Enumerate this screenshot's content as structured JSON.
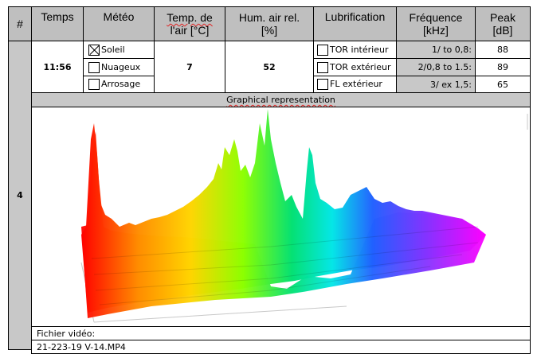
{
  "headers": {
    "num": "#",
    "temps": "Temps",
    "meteo": "Météo",
    "temp_air_l1": "Temp. de",
    "temp_air_l2": "l'air [°C]",
    "hum_l1": "Hum. air rel.",
    "hum_l2": "[%]",
    "lubrification": "Lubrification",
    "frequence_l1": "Fréquence",
    "frequence_l2": "[kHz]",
    "peak_l1": "Peak",
    "peak_l2": "[dB]"
  },
  "row": {
    "index": "4",
    "time": "11:56",
    "weather": [
      {
        "label": "Soleil",
        "checked": true
      },
      {
        "label": "Nuageux",
        "checked": false
      },
      {
        "label": "Arrosage",
        "checked": false
      }
    ],
    "temperature": "7",
    "humidity": "52",
    "lubrication": [
      {
        "label": "TOR intérieur",
        "checked": false
      },
      {
        "label": "TOR extérieur",
        "checked": false
      },
      {
        "label": "FL extérieur",
        "checked": false
      }
    ],
    "frequency_bands": [
      "1/ to 0,8:",
      "2/0,8 to 1.5:",
      "3/ ex 1,5:"
    ],
    "peaks": [
      "88",
      "89",
      "65"
    ]
  },
  "graph": {
    "title": "Graphical representation"
  },
  "video": {
    "label": "Fichier vidéo:",
    "filename": "21-223-19 V-14.MP4"
  },
  "colors": {
    "header_bg": "#bfbfbf",
    "grey_cell": "#c8c8c8",
    "spectrum_start": "#ff0000",
    "spectrum_end": "#ff00ff"
  }
}
